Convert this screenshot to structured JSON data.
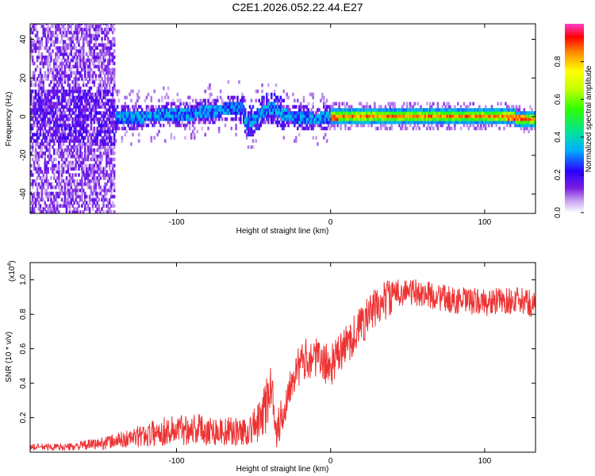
{
  "title": "C2E1.2026.052.22.44.E27",
  "chart_data": [
    {
      "type": "heatmap",
      "title": "C2E1.2026.052.22.44.E27",
      "xlabel": "Height of straight line (km)",
      "ylabel": "Frequency (Hz)",
      "xlim": [
        -195,
        133
      ],
      "ylim": [
        -50,
        48
      ],
      "x_ticks": [
        -100,
        0,
        100
      ],
      "x_tick_labels": [
        "-100",
        "0",
        "100"
      ],
      "y_ticks": [
        -40,
        -20,
        0,
        20,
        40
      ],
      "y_tick_labels": [
        "-40",
        "-20",
        "0",
        "20",
        "40"
      ],
      "ridge": {
        "x": [
          -195,
          -170,
          -150,
          -130,
          -110,
          -90,
          -70,
          -58,
          -55,
          -50,
          -45,
          -38,
          -30,
          -20,
          -10,
          0,
          20,
          60,
          100,
          133
        ],
        "frequency": [
          0,
          0,
          -1,
          -1,
          0,
          1,
          3,
          4,
          -4,
          -2,
          2,
          4,
          0,
          -1,
          -2,
          -1,
          0,
          0,
          0,
          -2
        ]
      },
      "colorbar": {
        "label": "Normalized spectral amplitude",
        "range": [
          0,
          1
        ],
        "ticks": [
          0.0,
          0.2,
          0.4,
          0.6,
          0.8
        ],
        "tick_labels": [
          "0.0",
          "0.2",
          "0.4",
          "0.6",
          "0.8"
        ]
      }
    },
    {
      "type": "line",
      "xlabel": "Height of straight line (km)",
      "ylabel": "SNR (10 * v/v)",
      "y_exponent_label": "(x10",
      "y_exponent": "4",
      "xlim": [
        -195,
        133
      ],
      "ylim": [
        0,
        1.1
      ],
      "x_ticks": [
        -100,
        0,
        100
      ],
      "x_tick_labels": [
        "-100",
        "0",
        "100"
      ],
      "y_ticks": [
        0.2,
        0.4,
        0.6,
        0.8,
        1.0
      ],
      "y_tick_labels": [
        "0.2",
        "0.4",
        "0.6",
        "0.8",
        "1.0"
      ],
      "color": "#ee3333",
      "series": [
        {
          "name": "SNR",
          "x": [
            -195,
            -170,
            -150,
            -130,
            -110,
            -90,
            -70,
            -55,
            -45,
            -38,
            -35,
            -30,
            -25,
            -20,
            -15,
            -10,
            -5,
            0,
            5,
            10,
            15,
            20,
            25,
            30,
            35,
            40,
            45,
            50,
            60,
            80,
            100,
            120,
            133
          ],
          "values": [
            0.03,
            0.03,
            0.05,
            0.08,
            0.12,
            0.14,
            0.12,
            0.12,
            0.18,
            0.4,
            0.12,
            0.25,
            0.45,
            0.5,
            0.55,
            0.55,
            0.52,
            0.5,
            0.56,
            0.62,
            0.68,
            0.74,
            0.8,
            0.84,
            0.88,
            0.91,
            0.93,
            0.93,
            0.92,
            0.88,
            0.87,
            0.88,
            0.86
          ]
        }
      ]
    }
  ]
}
